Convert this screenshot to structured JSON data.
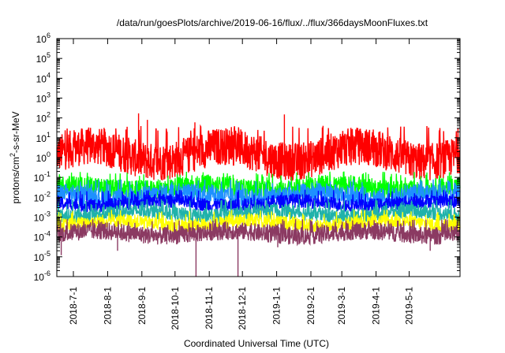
{
  "chart_data": {
    "type": "line",
    "title": "/data/run/goesPlots/archive/2019-06-16/flux/../flux/366daysMoonFluxes.txt",
    "xlabel": "Coordinated Universal Time (UTC)",
    "ylabel": {
      "base": "protons/cm",
      "sup": "2",
      "rest": "-s-sr-MeV"
    },
    "y_scale": "log",
    "ylim": [
      1e-06,
      1000000.0
    ],
    "y_ticks": [
      {
        "base": "10",
        "exp": "-6",
        "value": 1e-06
      },
      {
        "base": "10",
        "exp": "-5",
        "value": 1e-05
      },
      {
        "base": "10",
        "exp": "-4",
        "value": 0.0001
      },
      {
        "base": "10",
        "exp": "-3",
        "value": 0.001
      },
      {
        "base": "10",
        "exp": "-2",
        "value": 0.01
      },
      {
        "base": "10",
        "exp": "-1",
        "value": 0.1
      },
      {
        "base": "10",
        "exp": "0",
        "value": 1
      },
      {
        "base": "10",
        "exp": "1",
        "value": 10
      },
      {
        "base": "10",
        "exp": "2",
        "value": 100
      },
      {
        "base": "10",
        "exp": "3",
        "value": 1000
      },
      {
        "base": "10",
        "exp": "4",
        "value": 10000
      },
      {
        "base": "10",
        "exp": "5",
        "value": 100000
      },
      {
        "base": "10",
        "exp": "6",
        "value": 1000000
      }
    ],
    "xlim": [
      "2018-06-16",
      "2019-06-16"
    ],
    "x_ticks": [
      "2018-7-1",
      "2018-8-1",
      "2018-9-1",
      "2018-10-1",
      "2018-11-1",
      "2018-12-1",
      "2019-1-1",
      "2019-2-1",
      "2019-3-1",
      "2019-4-1",
      "2019-5-1"
    ],
    "x_tick_dates": [
      "2018-07-01",
      "2018-08-01",
      "2018-09-01",
      "2018-10-01",
      "2018-11-01",
      "2018-12-01",
      "2019-01-01",
      "2019-02-01",
      "2019-03-01",
      "2019-04-01",
      "2019-05-01"
    ],
    "grid": false,
    "series": [
      {
        "color": "#ff0000",
        "typical": 1.5,
        "low": 0.15,
        "high": 20,
        "spikes": [
          {
            "date": "2018-08-29",
            "value": 170
          },
          {
            "date": "2018-10-19",
            "value": 60
          },
          {
            "date": "2019-01-08",
            "value": 150
          },
          {
            "date": "2018-09-06",
            "value": 80
          },
          {
            "date": "2019-02-12",
            "value": 40
          }
        ]
      },
      {
        "color": "#00ff00",
        "typical": 0.03,
        "low": 0.008,
        "high": 0.1,
        "spikes": []
      },
      {
        "color": "#1e90ff",
        "typical": 0.012,
        "low": 0.003,
        "high": 0.04,
        "spikes": []
      },
      {
        "color": "#0000ff",
        "typical": 0.005,
        "low": 0.002,
        "high": 0.012,
        "spikes": []
      },
      {
        "color": "#20b2aa",
        "typical": 0.0015,
        "low": 0.0006,
        "high": 0.004,
        "spikes": []
      },
      {
        "color": "#ffff00",
        "typical": 0.0005,
        "low": 0.0002,
        "high": 0.0012,
        "spikes": []
      },
      {
        "color": "#8b3a62",
        "typical": 0.00015,
        "low": 4e-05,
        "high": 0.0004,
        "spikes": [
          {
            "date": "2018-06-20",
            "value": 1.2e-05
          },
          {
            "date": "2018-10-20",
            "value": 1e-06
          },
          {
            "date": "2018-11-27",
            "value": 1e-06
          },
          {
            "date": "2019-05-20",
            "value": 2e-05
          },
          {
            "date": "2018-08-10",
            "value": 2e-05
          },
          {
            "date": "2019-01-02",
            "value": 3e-05
          }
        ]
      }
    ]
  }
}
